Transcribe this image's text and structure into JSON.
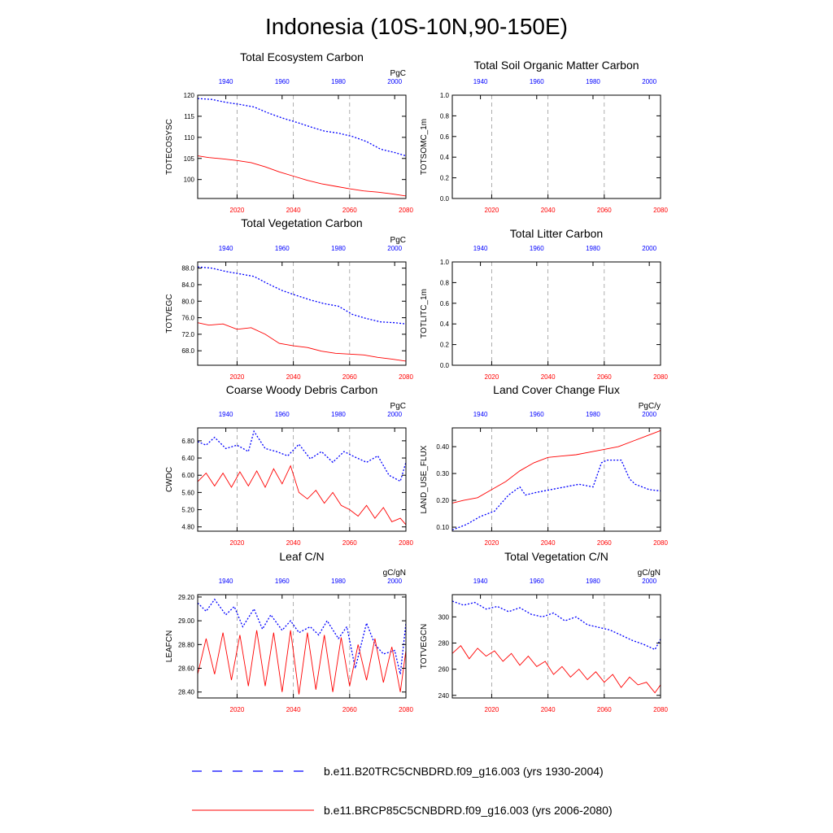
{
  "title": "Indonesia (10S-10N,90-150E)",
  "colors": {
    "historical": "#0000ff",
    "future": "#ff0000",
    "axis": "#000000",
    "grid": "#9a9a9a"
  },
  "legend": [
    {
      "label": "b.e11.B20TRC5CNBDRD.f09_g16.003 (yrs 1930-2004)",
      "color": "#0000ff",
      "style": "dashed"
    },
    {
      "label": "b.e11.BRCP85C5CNBDRD.f09_g16.003 (yrs 2006-2080)",
      "color": "#ff0000",
      "style": "solid"
    }
  ],
  "chart_data": [
    {
      "type": "line",
      "title": "Total Ecosystem Carbon",
      "ylabel": "TOTECOSYSC",
      "units": "PgC",
      "ylim": [
        95.5,
        120
      ],
      "yticks": [
        100,
        105,
        110,
        115,
        120
      ],
      "ytick_labels": [
        "100",
        "105",
        "110",
        "115",
        "120"
      ],
      "x_top": {
        "range": [
          1930,
          2004
        ],
        "ticks": [
          1940,
          1960,
          1980,
          2000
        ],
        "label_color": "#0000ff"
      },
      "x_bottom": {
        "range": [
          2006,
          2080
        ],
        "ticks": [
          2020,
          2040,
          2060,
          2080
        ],
        "label_color": "#ff0000"
      },
      "series": [
        {
          "axis": "top",
          "style": "dashed",
          "color": "#0000ff",
          "x": [
            1930,
            1935,
            1940,
            1945,
            1950,
            1955,
            1960,
            1965,
            1970,
            1975,
            1980,
            1985,
            1990,
            1995,
            2000,
            2004
          ],
          "y": [
            119.2,
            119.0,
            118.3,
            117.8,
            117.2,
            115.8,
            114.6,
            113.6,
            112.5,
            111.5,
            111.0,
            110.2,
            109.0,
            107.2,
            106.4,
            105.6
          ]
        },
        {
          "axis": "bottom",
          "style": "solid",
          "color": "#ff0000",
          "x": [
            2006,
            2010,
            2015,
            2020,
            2025,
            2030,
            2035,
            2040,
            2045,
            2050,
            2055,
            2060,
            2065,
            2070,
            2075,
            2080
          ],
          "y": [
            105.6,
            105.2,
            104.9,
            104.5,
            104.0,
            103.0,
            101.8,
            100.8,
            99.8,
            99.0,
            98.4,
            97.8,
            97.3,
            97.0,
            96.6,
            96.1
          ]
        }
      ]
    },
    {
      "type": "line",
      "title": "Total Soil Organic Matter Carbon",
      "ylabel": "TOTSOMC_1m",
      "units": "",
      "ylim": [
        0,
        1
      ],
      "yticks": [
        0,
        0.2,
        0.4,
        0.6,
        0.8,
        1.0
      ],
      "ytick_labels": [
        "0.0",
        "0.2",
        "0.4",
        "0.6",
        "0.8",
        "1.0"
      ],
      "x_top": {
        "range": [
          1930,
          2004
        ],
        "ticks": [
          1940,
          1960,
          1980,
          2000
        ],
        "label_color": "#0000ff"
      },
      "x_bottom": {
        "range": [
          2006,
          2080
        ],
        "ticks": [
          2020,
          2040,
          2060,
          2080
        ],
        "label_color": "#ff0000"
      },
      "series": []
    },
    {
      "type": "line",
      "title": "Total Vegetation Carbon",
      "ylabel": "TOTVEGC",
      "units": "PgC",
      "ylim": [
        64.5,
        89.5
      ],
      "yticks": [
        68,
        72,
        76,
        80,
        84,
        88
      ],
      "ytick_labels": [
        "68.0",
        "72.0",
        "76.0",
        "80.0",
        "84.0",
        "88.0"
      ],
      "x_top": {
        "range": [
          1930,
          2004
        ],
        "ticks": [
          1940,
          1960,
          1980,
          2000
        ],
        "label_color": "#0000ff"
      },
      "x_bottom": {
        "range": [
          2006,
          2080
        ],
        "ticks": [
          2020,
          2040,
          2060,
          2080
        ],
        "label_color": "#ff0000"
      },
      "series": [
        {
          "axis": "top",
          "style": "dashed",
          "color": "#0000ff",
          "x": [
            1930,
            1935,
            1940,
            1945,
            1950,
            1955,
            1960,
            1965,
            1970,
            1975,
            1980,
            1985,
            1990,
            1995,
            2000,
            2004
          ],
          "y": [
            88.3,
            88.0,
            87.2,
            86.6,
            86.0,
            84.2,
            82.6,
            81.4,
            80.3,
            79.4,
            78.8,
            76.8,
            75.8,
            75.0,
            74.8,
            74.5
          ]
        },
        {
          "axis": "bottom",
          "style": "solid",
          "color": "#ff0000",
          "x": [
            2006,
            2010,
            2015,
            2020,
            2025,
            2030,
            2035,
            2040,
            2045,
            2050,
            2055,
            2060,
            2065,
            2070,
            2075,
            2080
          ],
          "y": [
            74.8,
            74.2,
            74.5,
            73.2,
            73.6,
            72.0,
            69.8,
            69.2,
            68.8,
            67.9,
            67.4,
            67.2,
            67.0,
            66.4,
            66.0,
            65.5
          ]
        }
      ]
    },
    {
      "type": "line",
      "title": "Total Litter Carbon",
      "ylabel": "TOTLITC_1m",
      "units": "",
      "ylim": [
        0,
        1
      ],
      "yticks": [
        0,
        0.2,
        0.4,
        0.6,
        0.8,
        1.0
      ],
      "ytick_labels": [
        "0.0",
        "0.2",
        "0.4",
        "0.6",
        "0.8",
        "1.0"
      ],
      "x_top": {
        "range": [
          1930,
          2004
        ],
        "ticks": [
          1940,
          1960,
          1980,
          2000
        ],
        "label_color": "#0000ff"
      },
      "x_bottom": {
        "range": [
          2006,
          2080
        ],
        "ticks": [
          2020,
          2040,
          2060,
          2080
        ],
        "label_color": "#ff0000"
      },
      "series": []
    },
    {
      "type": "line",
      "title": "Coarse Woody Debris Carbon",
      "ylabel": "CWDC",
      "units": "PgC",
      "ylim": [
        4.7,
        7.1
      ],
      "yticks": [
        4.8,
        5.2,
        5.6,
        6.0,
        6.4,
        6.8
      ],
      "ytick_labels": [
        "4.80",
        "5.20",
        "5.60",
        "6.00",
        "6.40",
        "6.80"
      ],
      "x_top": {
        "range": [
          1930,
          2004
        ],
        "ticks": [
          1940,
          1960,
          1980,
          2000
        ],
        "label_color": "#0000ff"
      },
      "x_bottom": {
        "range": [
          2006,
          2080
        ],
        "ticks": [
          2020,
          2040,
          2060,
          2080
        ],
        "label_color": "#ff0000"
      },
      "series": [
        {
          "axis": "top",
          "style": "dashed",
          "color": "#0000ff",
          "x": [
            1930,
            1933,
            1936,
            1940,
            1944,
            1948,
            1950,
            1954,
            1958,
            1962,
            1966,
            1970,
            1974,
            1978,
            1982,
            1986,
            1990,
            1994,
            1998,
            2002,
            2004
          ],
          "y": [
            6.78,
            6.7,
            6.88,
            6.62,
            6.7,
            6.55,
            7.02,
            6.62,
            6.55,
            6.45,
            6.72,
            6.38,
            6.55,
            6.3,
            6.55,
            6.42,
            6.3,
            6.45,
            6.0,
            5.86,
            6.3
          ]
        },
        {
          "axis": "bottom",
          "style": "solid",
          "color": "#ff0000",
          "x": [
            2006,
            2009,
            2012,
            2015,
            2018,
            2021,
            2024,
            2027,
            2030,
            2033,
            2036,
            2039,
            2042,
            2045,
            2048,
            2051,
            2054,
            2057,
            2060,
            2063,
            2066,
            2069,
            2072,
            2075,
            2078,
            2080
          ],
          "y": [
            5.85,
            6.05,
            5.75,
            6.05,
            5.72,
            6.08,
            5.75,
            6.1,
            5.72,
            6.15,
            5.8,
            6.22,
            5.6,
            5.45,
            5.65,
            5.35,
            5.6,
            5.3,
            5.2,
            5.05,
            5.3,
            5.0,
            5.25,
            4.92,
            5.0,
            4.85
          ]
        }
      ]
    },
    {
      "type": "line",
      "title": "Land Cover Change Flux",
      "ylabel": "LAND_USE_FLUX",
      "units": "PgC/y",
      "ylim": [
        0.085,
        0.47
      ],
      "yticks": [
        0.1,
        0.2,
        0.3,
        0.4
      ],
      "ytick_labels": [
        "0.10",
        "0.20",
        "0.30",
        "0.40"
      ],
      "x_top": {
        "range": [
          1930,
          2004
        ],
        "ticks": [
          1940,
          1960,
          1980,
          2000
        ],
        "label_color": "#0000ff"
      },
      "x_bottom": {
        "range": [
          2006,
          2080
        ],
        "ticks": [
          2020,
          2040,
          2060,
          2080
        ],
        "label_color": "#ff0000"
      },
      "series": [
        {
          "axis": "top",
          "style": "dashed",
          "color": "#0000ff",
          "x": [
            1930,
            1935,
            1940,
            1945,
            1950,
            1954,
            1956,
            1960,
            1965,
            1970,
            1975,
            1980,
            1983,
            1985,
            1990,
            1993,
            1995,
            2000,
            2004
          ],
          "y": [
            0.09,
            0.11,
            0.14,
            0.16,
            0.22,
            0.25,
            0.22,
            0.23,
            0.24,
            0.25,
            0.26,
            0.25,
            0.34,
            0.35,
            0.35,
            0.28,
            0.26,
            0.24,
            0.235
          ]
        },
        {
          "axis": "bottom",
          "style": "solid",
          "color": "#ff0000",
          "x": [
            2006,
            2010,
            2015,
            2020,
            2025,
            2030,
            2035,
            2040,
            2045,
            2050,
            2055,
            2060,
            2065,
            2070,
            2075,
            2080
          ],
          "y": [
            0.19,
            0.2,
            0.21,
            0.24,
            0.27,
            0.31,
            0.34,
            0.36,
            0.365,
            0.37,
            0.38,
            0.39,
            0.4,
            0.42,
            0.44,
            0.46
          ]
        }
      ]
    },
    {
      "type": "line",
      "title": "Leaf C/N",
      "ylabel": "LEAFCN",
      "units": "gC/gN",
      "ylim": [
        28.35,
        29.22
      ],
      "yticks": [
        28.4,
        28.6,
        28.8,
        29.0,
        29.2
      ],
      "ytick_labels": [
        "28.40",
        "28.60",
        "28.80",
        "29.00",
        "29.20"
      ],
      "x_top": {
        "range": [
          1930,
          2004
        ],
        "ticks": [
          1940,
          1960,
          1980,
          2000
        ],
        "label_color": "#0000ff"
      },
      "x_bottom": {
        "range": [
          2006,
          2080
        ],
        "ticks": [
          2020,
          2040,
          2060,
          2080
        ],
        "label_color": "#ff0000"
      },
      "series": [
        {
          "axis": "top",
          "style": "dashed",
          "color": "#0000ff",
          "x": [
            1930,
            1933,
            1936,
            1940,
            1943,
            1946,
            1950,
            1953,
            1956,
            1960,
            1963,
            1966,
            1970,
            1973,
            1976,
            1980,
            1983,
            1986,
            1990,
            1993,
            1996,
            2000,
            2002,
            2004
          ],
          "y": [
            29.15,
            29.08,
            29.18,
            29.05,
            29.12,
            28.95,
            29.1,
            28.93,
            29.05,
            28.92,
            29.0,
            28.9,
            28.95,
            28.88,
            29.0,
            28.85,
            28.95,
            28.6,
            28.98,
            28.8,
            28.72,
            28.75,
            28.55,
            28.98
          ]
        },
        {
          "axis": "bottom",
          "style": "solid",
          "color": "#ff0000",
          "x": [
            2006,
            2009,
            2012,
            2015,
            2018,
            2021,
            2024,
            2027,
            2030,
            2033,
            2036,
            2039,
            2042,
            2045,
            2048,
            2051,
            2054,
            2057,
            2060,
            2063,
            2066,
            2069,
            2072,
            2075,
            2078,
            2080
          ],
          "y": [
            28.55,
            28.85,
            28.55,
            28.9,
            28.5,
            28.88,
            28.45,
            28.92,
            28.45,
            28.9,
            28.4,
            28.92,
            28.38,
            28.9,
            28.42,
            28.88,
            28.4,
            28.86,
            28.45,
            28.8,
            28.5,
            28.85,
            28.48,
            28.78,
            28.4,
            28.75
          ]
        }
      ]
    },
    {
      "type": "line",
      "title": "Total Vegetation C/N",
      "ylabel": "TOTVEGCN",
      "units": "gC/gN",
      "ylim": [
        238,
        317
      ],
      "yticks": [
        240,
        260,
        280,
        300
      ],
      "ytick_labels": [
        "240",
        "260",
        "280",
        "300"
      ],
      "x_top": {
        "range": [
          1930,
          2004
        ],
        "ticks": [
          1940,
          1960,
          1980,
          2000
        ],
        "label_color": "#0000ff"
      },
      "x_bottom": {
        "range": [
          2006,
          2080
        ],
        "ticks": [
          2020,
          2040,
          2060,
          2080
        ],
        "label_color": "#ff0000"
      },
      "series": [
        {
          "axis": "top",
          "style": "dashed",
          "color": "#0000ff",
          "x": [
            1930,
            1934,
            1938,
            1942,
            1946,
            1950,
            1954,
            1958,
            1962,
            1966,
            1970,
            1974,
            1978,
            1982,
            1986,
            1990,
            1994,
            1998,
            2002,
            2004
          ],
          "y": [
            312,
            309,
            311,
            306,
            308,
            304,
            307,
            302,
            300,
            303,
            297,
            300,
            294,
            292,
            290,
            286,
            282,
            279,
            275,
            283
          ]
        },
        {
          "axis": "bottom",
          "style": "solid",
          "color": "#ff0000",
          "x": [
            2006,
            2009,
            2012,
            2015,
            2018,
            2021,
            2024,
            2027,
            2030,
            2033,
            2036,
            2039,
            2042,
            2045,
            2048,
            2051,
            2054,
            2057,
            2060,
            2063,
            2066,
            2069,
            2072,
            2075,
            2078,
            2080
          ],
          "y": [
            272,
            278,
            268,
            276,
            270,
            274,
            266,
            272,
            263,
            270,
            262,
            266,
            256,
            262,
            254,
            260,
            252,
            258,
            250,
            256,
            246,
            254,
            248,
            250,
            242,
            248
          ]
        }
      ]
    }
  ]
}
